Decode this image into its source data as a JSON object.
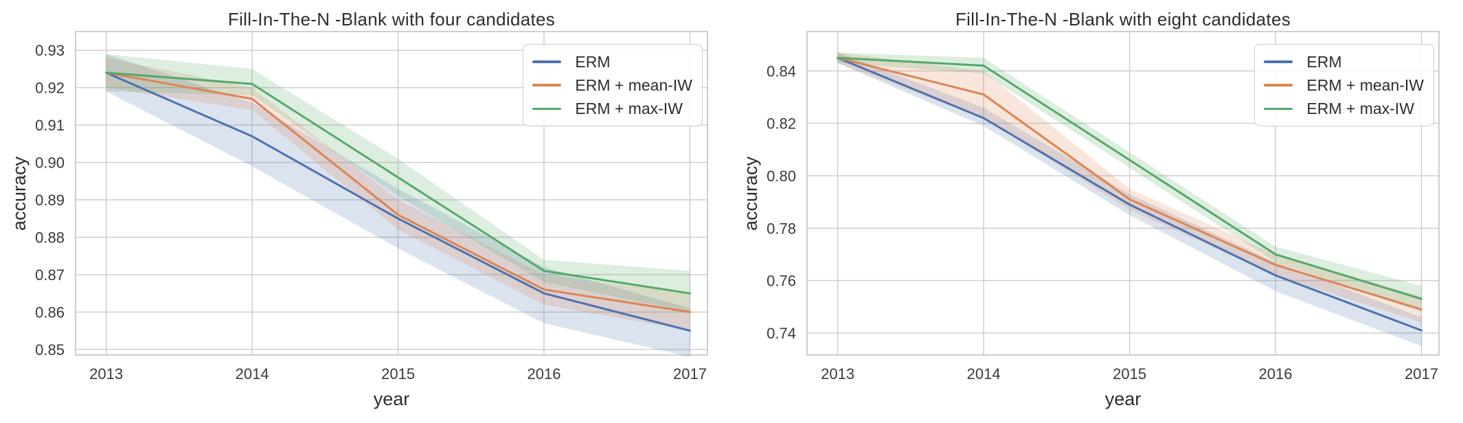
{
  "figure": {
    "background": "#ffffff"
  },
  "style": {
    "grid_color": "#cbcbcb",
    "spine_color": "#c2c2c2",
    "tick_text_color": "#3a3a3a",
    "title_text_color": "#2d2d2d",
    "band_opacity": 0.2,
    "line_width": 3,
    "legend_border_color": "#cccccc"
  },
  "chart_data": [
    {
      "type": "line",
      "title": "Fill-In-The-N -Blank with four candidates",
      "xlabel": "year",
      "ylabel": "accuracy",
      "x": [
        2013,
        2014,
        2015,
        2016,
        2017
      ],
      "xtick_labels": [
        "2013",
        "2014",
        "2015",
        "2016",
        "2017"
      ],
      "xlim": [
        2012.79,
        2017.12
      ],
      "ylim": [
        0.8485,
        0.935
      ],
      "yticks": [
        0.85,
        0.86,
        0.87,
        0.88,
        0.89,
        0.9,
        0.91,
        0.92,
        0.93
      ],
      "ytick_labels": [
        "0.85",
        "0.86",
        "0.87",
        "0.88",
        "0.89",
        "0.90",
        "0.91",
        "0.92",
        "0.93"
      ],
      "grid": true,
      "legend_position": "upper right",
      "series": [
        {
          "name": "ERM",
          "color": "#4C72B0",
          "values": [
            0.924,
            0.907,
            0.885,
            0.865,
            0.855
          ],
          "band_lower": [
            0.919,
            0.899,
            0.877,
            0.857,
            0.848
          ],
          "band_upper": [
            0.929,
            0.916,
            0.893,
            0.872,
            0.861
          ]
        },
        {
          "name": "ERM + mean-IW",
          "color": "#DD8452",
          "values": [
            0.924,
            0.917,
            0.886,
            0.866,
            0.86
          ],
          "band_lower": [
            0.92,
            0.914,
            0.882,
            0.862,
            0.855
          ],
          "band_upper": [
            0.928,
            0.92,
            0.89,
            0.87,
            0.865
          ]
        },
        {
          "name": "ERM + max-IW",
          "color": "#55A868",
          "values": [
            0.924,
            0.921,
            0.896,
            0.871,
            0.865
          ],
          "band_lower": [
            0.919,
            0.918,
            0.891,
            0.868,
            0.86
          ],
          "band_upper": [
            0.929,
            0.925,
            0.901,
            0.874,
            0.871
          ]
        }
      ]
    },
    {
      "type": "line",
      "title": "Fill-In-The-N -Blank with eight candidates",
      "xlabel": "year",
      "ylabel": "accuracy",
      "x": [
        2013,
        2014,
        2015,
        2016,
        2017
      ],
      "xtick_labels": [
        "2013",
        "2014",
        "2015",
        "2016",
        "2017"
      ],
      "xlim": [
        2012.79,
        2017.12
      ],
      "ylim": [
        0.7316,
        0.855
      ],
      "yticks": [
        0.74,
        0.76,
        0.78,
        0.8,
        0.82,
        0.84
      ],
      "ytick_labels": [
        "0.74",
        "0.76",
        "0.78",
        "0.80",
        "0.82",
        "0.84"
      ],
      "grid": true,
      "legend_position": "upper right",
      "series": [
        {
          "name": "ERM",
          "color": "#4C72B0",
          "values": [
            0.845,
            0.822,
            0.789,
            0.762,
            0.741
          ],
          "band_lower": [
            0.843,
            0.819,
            0.785,
            0.756,
            0.735
          ],
          "band_upper": [
            0.847,
            0.826,
            0.793,
            0.767,
            0.746
          ]
        },
        {
          "name": "ERM + mean-IW",
          "color": "#DD8452",
          "values": [
            0.845,
            0.831,
            0.791,
            0.766,
            0.749
          ],
          "band_lower": [
            0.843,
            0.822,
            0.787,
            0.762,
            0.744
          ],
          "band_upper": [
            0.847,
            0.84,
            0.795,
            0.77,
            0.754
          ]
        },
        {
          "name": "ERM + max-IW",
          "color": "#55A868",
          "values": [
            0.845,
            0.842,
            0.806,
            0.77,
            0.753
          ],
          "band_lower": [
            0.843,
            0.839,
            0.803,
            0.767,
            0.748
          ],
          "band_upper": [
            0.847,
            0.845,
            0.809,
            0.773,
            0.758
          ]
        }
      ]
    }
  ]
}
